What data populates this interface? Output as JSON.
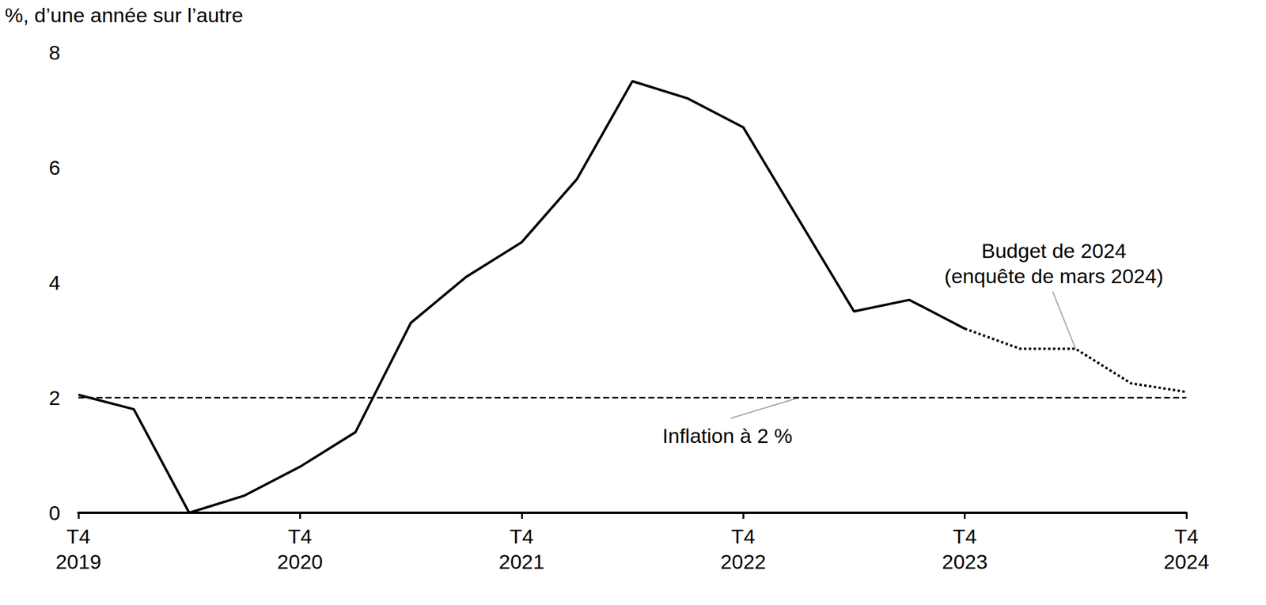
{
  "chart_data": {
    "type": "line",
    "y_label": "%, d’une année sur l’autre",
    "categories": [
      "T4\n2019",
      null,
      null,
      null,
      "T4\n2020",
      null,
      null,
      null,
      "T4\n2021",
      null,
      null,
      null,
      "T4\n2022",
      null,
      null,
      null,
      "T4\n2023",
      null,
      null,
      null,
      "T4\n2024"
    ],
    "series": [
      {
        "color": "#000000",
        "line_style": "solid",
        "values": [
          2.05,
          1.8,
          0.0,
          0.3,
          0.8,
          1.4,
          3.3,
          4.1,
          4.7,
          5.8,
          7.5,
          7.2,
          6.7,
          5.1,
          3.5,
          3.7,
          3.2,
          null,
          null,
          null,
          null
        ]
      },
      {
        "name": "Budget de 2024\n(enquête de mars 2024)",
        "color": "#000000",
        "line_style": "dotted",
        "values": [
          null,
          null,
          null,
          null,
          null,
          null,
          null,
          null,
          null,
          null,
          null,
          null,
          null,
          null,
          null,
          null,
          3.2,
          2.85,
          2.85,
          2.25,
          2.1
        ]
      },
      {
        "name": "Inflation à 2 %",
        "color": "#000000",
        "line_style": "dashed",
        "values": [
          2,
          2,
          2,
          2,
          2,
          2,
          2,
          2,
          2,
          2,
          2,
          2,
          2,
          2,
          2,
          2,
          2,
          2,
          2,
          2,
          2
        ]
      }
    ],
    "ylim": [
      0,
      8
    ],
    "yticks": [
      0,
      2,
      4,
      6,
      8
    ],
    "grid": false
  }
}
